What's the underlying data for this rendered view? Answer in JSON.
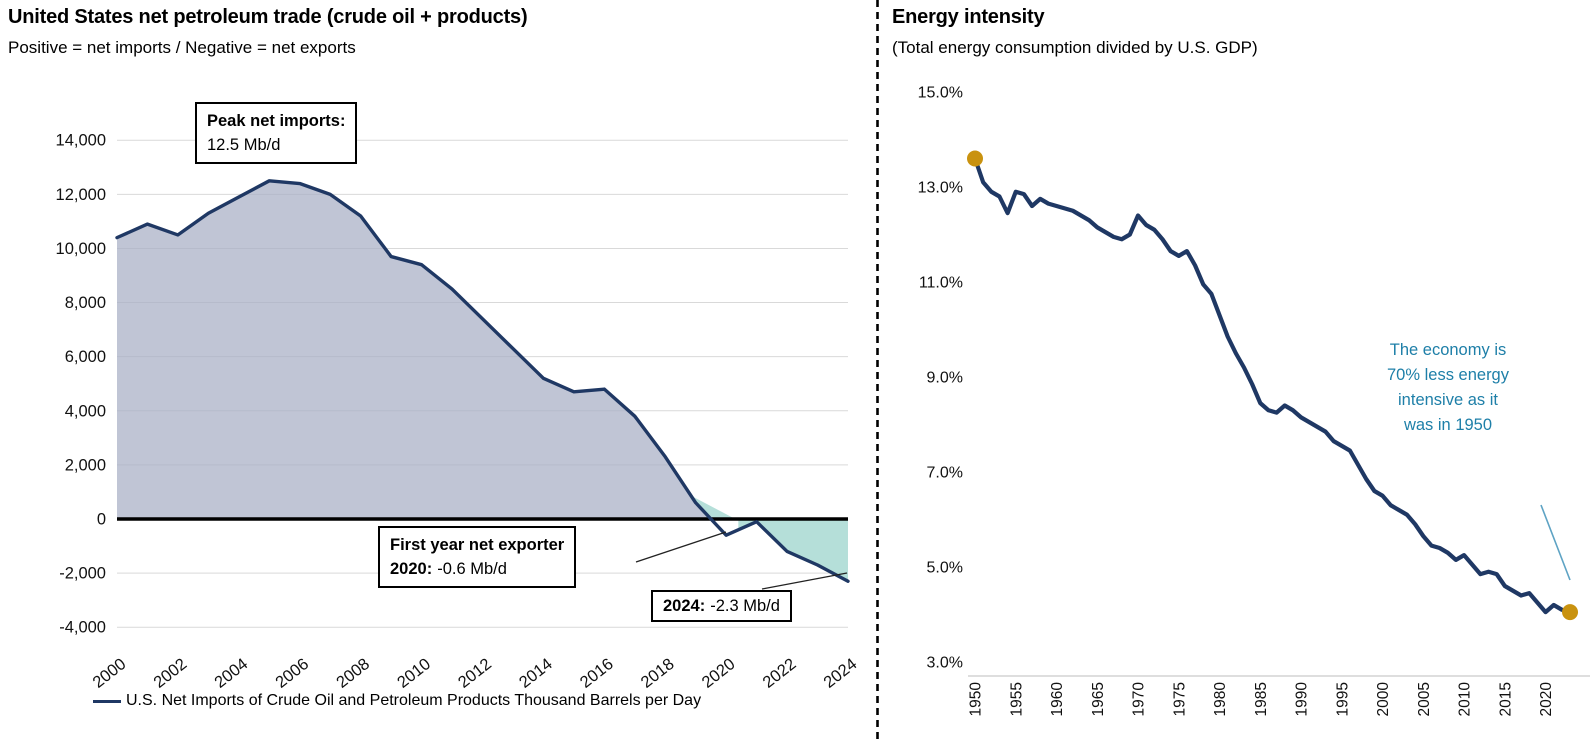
{
  "colors": {
    "line_navy": "#1f3864",
    "area_positive_fill": "#a8aec5",
    "area_negative_fill": "#98d3ca",
    "endpoint_dot": "#c9920f",
    "note_teal": "#1e7fa8",
    "leader_teal": "#5ea3c4",
    "gridline": "#d9d9d9",
    "zero_axis": "#000000",
    "divider": "#000000"
  },
  "chart_data": [
    {
      "type": "area",
      "title": "United States net petroleum trade (crude oil + products)",
      "subtitle": "Positive = net imports / Negative = net exports",
      "series_name": "U.S. Net Imports of Crude Oil and Petroleum Products Thousand Barrels per Day",
      "units": "thousand barrels per day",
      "xlabel": "",
      "ylabel": "",
      "grid": "horizontal",
      "zero_line": true,
      "legend_position": "bottom",
      "ylim": [
        -4000,
        14000
      ],
      "x": [
        2000,
        2001,
        2002,
        2003,
        2004,
        2005,
        2006,
        2007,
        2008,
        2009,
        2010,
        2011,
        2012,
        2013,
        2014,
        2015,
        2016,
        2017,
        2018,
        2019,
        2020,
        2021,
        2022,
        2023,
        2024
      ],
      "values": [
        10400,
        10900,
        10500,
        11300,
        11900,
        12500,
        12400,
        12000,
        11200,
        9700,
        9400,
        8500,
        7400,
        6300,
        5200,
        4700,
        4800,
        3800,
        2300,
        600,
        -600,
        -100,
        -1200,
        -1700,
        -2300
      ],
      "y_ticks": [
        14000,
        12000,
        10000,
        8000,
        6000,
        4000,
        2000,
        0,
        -2000,
        -4000
      ],
      "y_tick_labels": [
        "14,000",
        "12,000",
        "10,000",
        "8,000",
        "6,000",
        "4,000",
        "2,000",
        "0",
        "-2,000",
        "-4,000"
      ],
      "x_ticks": [
        2000,
        2002,
        2004,
        2006,
        2008,
        2010,
        2012,
        2014,
        2016,
        2018,
        2020,
        2022,
        2024
      ],
      "x_tick_labels": [
        "2000",
        "2002",
        "2004",
        "2006",
        "2008",
        "2010",
        "2012",
        "2014",
        "2016",
        "2018",
        "2020",
        "2022",
        "2024"
      ],
      "annotations": {
        "peak_label": "Peak net imports:",
        "peak_value": "12.5 Mb/d",
        "exporter_label": "First year net exporter",
        "exporter_year": "2020:",
        "exporter_value": "-0.6 Mb/d",
        "latest_year": "2024:",
        "latest_value": "-2.3 Mb/d"
      }
    },
    {
      "type": "line",
      "title": "Energy intensity",
      "subtitle": "(Total energy consumption divided by U.S. GDP)",
      "units": "percent",
      "grid": "off",
      "endpoint_markers": true,
      "ylim": [
        3,
        15
      ],
      "x": [
        1950,
        1951,
        1952,
        1953,
        1954,
        1955,
        1956,
        1957,
        1958,
        1959,
        1960,
        1961,
        1962,
        1963,
        1964,
        1965,
        1966,
        1967,
        1968,
        1969,
        1970,
        1971,
        1972,
        1973,
        1974,
        1975,
        1976,
        1977,
        1978,
        1979,
        1980,
        1981,
        1982,
        1983,
        1984,
        1985,
        1986,
        1987,
        1988,
        1989,
        1990,
        1991,
        1992,
        1993,
        1994,
        1995,
        1996,
        1997,
        1998,
        1999,
        2000,
        2001,
        2002,
        2003,
        2004,
        2005,
        2006,
        2007,
        2008,
        2009,
        2010,
        2011,
        2012,
        2013,
        2014,
        2015,
        2016,
        2017,
        2018,
        2019,
        2020,
        2021,
        2022,
        2023
      ],
      "values": [
        13.6,
        13.1,
        12.9,
        12.8,
        12.45,
        12.9,
        12.85,
        12.6,
        12.75,
        12.65,
        12.6,
        12.55,
        12.5,
        12.4,
        12.3,
        12.15,
        12.05,
        11.95,
        11.9,
        12.0,
        12.4,
        12.2,
        12.1,
        11.9,
        11.65,
        11.55,
        11.65,
        11.35,
        10.95,
        10.75,
        10.3,
        9.85,
        9.5,
        9.2,
        8.85,
        8.45,
        8.3,
        8.25,
        8.4,
        8.3,
        8.15,
        8.05,
        7.95,
        7.85,
        7.65,
        7.55,
        7.45,
        7.15,
        6.85,
        6.6,
        6.5,
        6.3,
        6.2,
        6.1,
        5.9,
        5.65,
        5.45,
        5.4,
        5.3,
        5.15,
        5.25,
        5.05,
        4.85,
        4.9,
        4.85,
        4.6,
        4.5,
        4.4,
        4.45,
        4.25,
        4.05,
        4.2,
        4.1,
        4.05
      ],
      "y_ticks": [
        15,
        13,
        11,
        9,
        7,
        5,
        3
      ],
      "y_tick_labels": [
        "15.0%",
        "13.0%",
        "11.0%",
        "9.0%",
        "7.0%",
        "5.0%",
        "3.0%"
      ],
      "x_ticks": [
        1950,
        1955,
        1960,
        1965,
        1970,
        1975,
        1980,
        1985,
        1990,
        1995,
        2000,
        2005,
        2010,
        2015,
        2020
      ],
      "x_tick_labels": [
        "1950",
        "1955",
        "1960",
        "1965",
        "1970",
        "1975",
        "1980",
        "1985",
        "1990",
        "1995",
        "2000",
        "2005",
        "2010",
        "2015",
        "2020"
      ],
      "annotations": {
        "note_lines": [
          "The economy is",
          "70% less energy",
          "intensive as it",
          "was in 1950"
        ]
      }
    }
  ]
}
